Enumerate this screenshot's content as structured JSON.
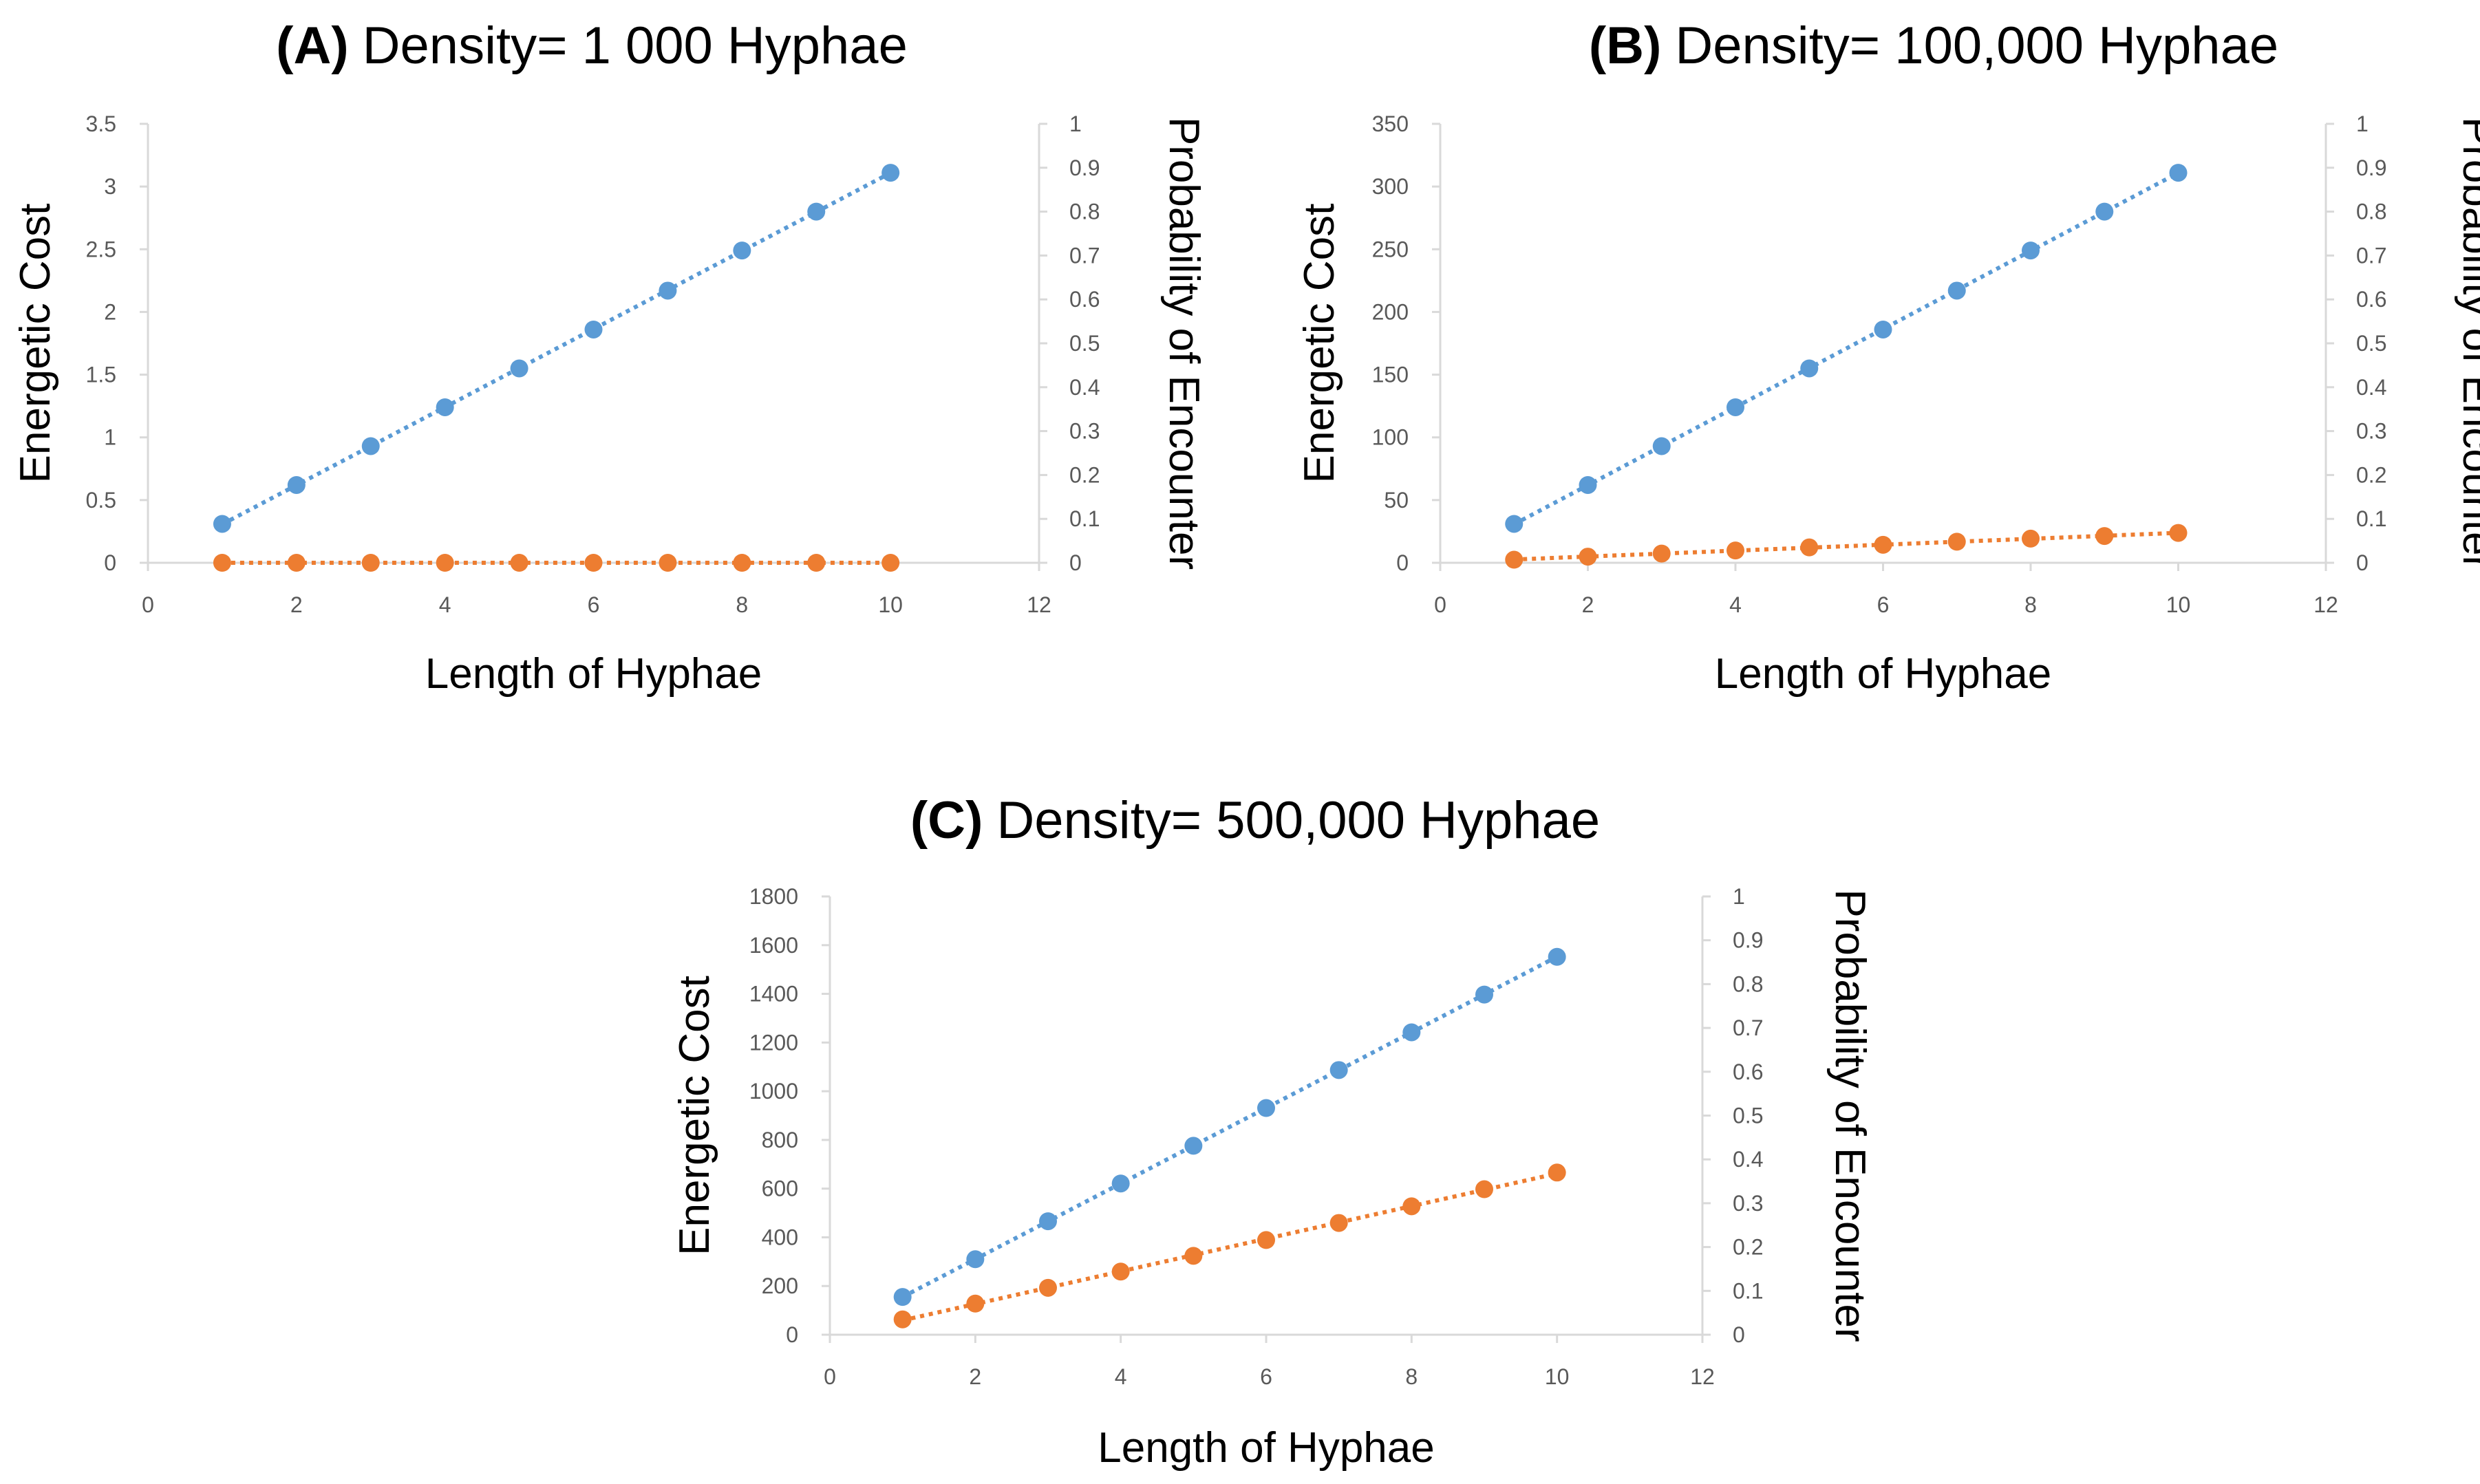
{
  "colors": {
    "cost": "#5b9bd5",
    "probability": "#ed7d31",
    "axis": "#d9d9d9",
    "tick_text": "#595959"
  },
  "chart_data": [
    {
      "type": "scatter",
      "panel": "A",
      "title_label": "(A)",
      "title": "Density= 1 000 Hyphae",
      "xlabel": "Length of Hyphae",
      "ylabel": "Energetic Cost",
      "y2label": "Probability of Encounter",
      "xlim": [
        0,
        12
      ],
      "ylim": [
        0,
        3.5
      ],
      "y2lim": [
        0,
        1
      ],
      "xticks": [
        "0",
        "2",
        "4",
        "6",
        "8",
        "10",
        "12"
      ],
      "yticks": [
        "0",
        "0.5",
        "1",
        "1.5",
        "2",
        "2.5",
        "3",
        "3.5"
      ],
      "y2ticks": [
        "0",
        "0.1",
        "0.2",
        "0.3",
        "0.4",
        "0.5",
        "0.6",
        "0.7",
        "0.8",
        "0.9",
        "1"
      ],
      "series": [
        {
          "name": "Energetic Cost",
          "axis": "left",
          "color": "#5b9bd5",
          "x": [
            1,
            2,
            3,
            4,
            5,
            6,
            7,
            8,
            9,
            10
          ],
          "values": [
            0.31,
            0.62,
            0.93,
            1.24,
            1.55,
            1.86,
            2.17,
            2.49,
            2.8,
            3.11
          ]
        },
        {
          "name": "Probability of Encounter",
          "axis": "right",
          "color": "#ed7d31",
          "x": [
            1,
            2,
            3,
            4,
            5,
            6,
            7,
            8,
            9,
            10
          ],
          "values": [
            0,
            0,
            0,
            0,
            0,
            0,
            0,
            0,
            0,
            0
          ]
        }
      ]
    },
    {
      "type": "scatter",
      "panel": "B",
      "title_label": "(B)",
      "title": "Density= 100,000 Hyphae",
      "xlabel": "Length of Hyphae",
      "ylabel": "Energetic Cost",
      "y2label": "Probability of Encounter",
      "xlim": [
        0,
        12
      ],
      "ylim": [
        0,
        350
      ],
      "y2lim": [
        0,
        1
      ],
      "xticks": [
        "0",
        "2",
        "4",
        "6",
        "8",
        "10",
        "12"
      ],
      "yticks": [
        "0",
        "50",
        "100",
        "150",
        "200",
        "250",
        "300",
        "350"
      ],
      "y2ticks": [
        "0",
        "0.1",
        "0.2",
        "0.3",
        "0.4",
        "0.5",
        "0.6",
        "0.7",
        "0.8",
        "0.9",
        "1"
      ],
      "series": [
        {
          "name": "Energetic Cost",
          "axis": "left",
          "color": "#5b9bd5",
          "x": [
            1,
            2,
            3,
            4,
            5,
            6,
            7,
            8,
            9,
            10
          ],
          "values": [
            31,
            62,
            93,
            124,
            155,
            186,
            217,
            249,
            280,
            311
          ]
        },
        {
          "name": "Probability of Encounter",
          "axis": "right",
          "color": "#ed7d31",
          "x": [
            1,
            2,
            3,
            4,
            5,
            6,
            7,
            8,
            9,
            10
          ],
          "values": [
            0.007,
            0.014,
            0.021,
            0.028,
            0.035,
            0.041,
            0.048,
            0.055,
            0.061,
            0.068
          ]
        }
      ]
    },
    {
      "type": "scatter",
      "panel": "C",
      "title_label": "(C)",
      "title": "Density= 500,000 Hyphae",
      "xlabel": "Length of Hyphae",
      "ylabel": "Energetic Cost",
      "y2label": "Probability of Encounter",
      "xlim": [
        0,
        12
      ],
      "ylim": [
        0,
        1800
      ],
      "y2lim": [
        0,
        1
      ],
      "xticks": [
        "0",
        "2",
        "4",
        "6",
        "8",
        "10",
        "12"
      ],
      "yticks": [
        "0",
        "200",
        "400",
        "600",
        "800",
        "1000",
        "1200",
        "1400",
        "1600",
        "1800"
      ],
      "y2ticks": [
        "0",
        "0.1",
        "0.2",
        "0.3",
        "0.4",
        "0.5",
        "0.6",
        "0.7",
        "0.8",
        "0.9",
        "1"
      ],
      "series": [
        {
          "name": "Energetic Cost",
          "axis": "left",
          "color": "#5b9bd5",
          "x": [
            1,
            2,
            3,
            4,
            5,
            6,
            7,
            8,
            9,
            10
          ],
          "values": [
            155,
            310,
            466,
            621,
            776,
            931,
            1087,
            1242,
            1397,
            1552
          ]
        },
        {
          "name": "Probability of Encounter",
          "axis": "right",
          "color": "#ed7d31",
          "x": [
            1,
            2,
            3,
            4,
            5,
            6,
            7,
            8,
            9,
            10
          ],
          "values": [
            0.035,
            0.071,
            0.107,
            0.144,
            0.18,
            0.216,
            0.255,
            0.293,
            0.332,
            0.37
          ]
        }
      ]
    }
  ]
}
